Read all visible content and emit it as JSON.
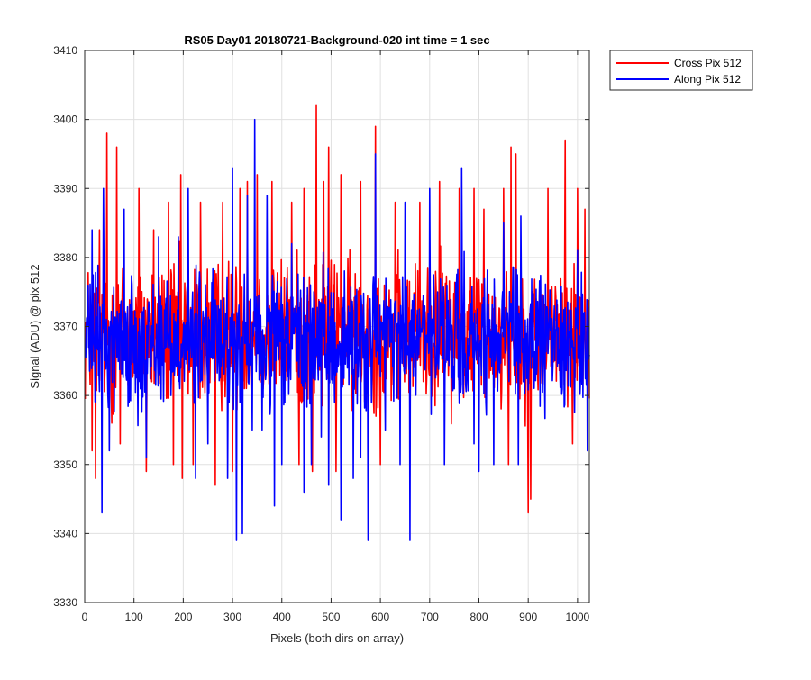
{
  "chart_data": {
    "type": "line",
    "title": "RS05 Day01 20180721-Background-020 int time = 1 sec",
    "xlabel": "Pixels (both dirs on array)",
    "ylabel": "Signal (ADU) @ pix 512",
    "xlim": [
      0,
      1024
    ],
    "ylim": [
      3330,
      3410
    ],
    "x_ticks": [
      0,
      100,
      200,
      300,
      400,
      500,
      600,
      700,
      800,
      900,
      1000
    ],
    "y_ticks": [
      3330,
      3340,
      3350,
      3360,
      3370,
      3380,
      3390,
      3400,
      3410
    ],
    "grid": true,
    "legend": "outside-top-right",
    "series": [
      {
        "name": "Cross Pix 512",
        "color": "#ff0000",
        "x_range": [
          1,
          1024
        ],
        "mean": 3369,
        "typical_range": [
          3354,
          3385
        ],
        "points": [
          [
            15,
            3352
          ],
          [
            22,
            3348
          ],
          [
            30,
            3384
          ],
          [
            45,
            3398
          ],
          [
            55,
            3356
          ],
          [
            65,
            3396
          ],
          [
            72,
            3353
          ],
          [
            110,
            3390
          ],
          [
            125,
            3349
          ],
          [
            140,
            3384
          ],
          [
            170,
            3388
          ],
          [
            180,
            3350
          ],
          [
            195,
            3392
          ],
          [
            198,
            3348
          ],
          [
            220,
            3350
          ],
          [
            235,
            3388
          ],
          [
            265,
            3347
          ],
          [
            280,
            3388
          ],
          [
            300,
            3349
          ],
          [
            315,
            3390
          ],
          [
            330,
            3391
          ],
          [
            350,
            3392
          ],
          [
            380,
            3391
          ],
          [
            420,
            3388
          ],
          [
            435,
            3350
          ],
          [
            445,
            3390
          ],
          [
            462,
            3349
          ],
          [
            470,
            3402
          ],
          [
            485,
            3391
          ],
          [
            495,
            3396
          ],
          [
            510,
            3349
          ],
          [
            520,
            3392
          ],
          [
            560,
            3391
          ],
          [
            590,
            3399
          ],
          [
            600,
            3350
          ],
          [
            630,
            3388
          ],
          [
            660,
            3352
          ],
          [
            680,
            3388
          ],
          [
            720,
            3391
          ],
          [
            760,
            3390
          ],
          [
            790,
            3390
          ],
          [
            810,
            3387
          ],
          [
            850,
            3390
          ],
          [
            860,
            3350
          ],
          [
            865,
            3396
          ],
          [
            875,
            3395
          ],
          [
            900,
            3343
          ],
          [
            905,
            3345
          ],
          [
            940,
            3390
          ],
          [
            975,
            3397
          ],
          [
            990,
            3353
          ],
          [
            1000,
            3390
          ],
          [
            1015,
            3387
          ]
        ]
      },
      {
        "name": "Along Pix 512",
        "color": "#0000ff",
        "x_range": [
          1,
          1024
        ],
        "mean": 3368,
        "typical_range": [
          3355,
          3383
        ],
        "points": [
          [
            15,
            3384
          ],
          [
            35,
            3343
          ],
          [
            38,
            3390
          ],
          [
            50,
            3352
          ],
          [
            80,
            3387
          ],
          [
            90,
            3359
          ],
          [
            125,
            3351
          ],
          [
            150,
            3383
          ],
          [
            175,
            3360
          ],
          [
            190,
            3383
          ],
          [
            210,
            3390
          ],
          [
            225,
            3348
          ],
          [
            250,
            3353
          ],
          [
            290,
            3348
          ],
          [
            300,
            3393
          ],
          [
            308,
            3339
          ],
          [
            315,
            3359
          ],
          [
            320,
            3340
          ],
          [
            330,
            3389
          ],
          [
            340,
            3355
          ],
          [
            345,
            3400
          ],
          [
            360,
            3355
          ],
          [
            370,
            3389
          ],
          [
            385,
            3344
          ],
          [
            400,
            3350
          ],
          [
            420,
            3382
          ],
          [
            445,
            3346
          ],
          [
            460,
            3350
          ],
          [
            480,
            3354
          ],
          [
            495,
            3347
          ],
          [
            520,
            3342
          ],
          [
            545,
            3348
          ],
          [
            560,
            3351
          ],
          [
            575,
            3339
          ],
          [
            590,
            3395
          ],
          [
            610,
            3355
          ],
          [
            640,
            3350
          ],
          [
            650,
            3388
          ],
          [
            660,
            3339
          ],
          [
            700,
            3390
          ],
          [
            730,
            3350
          ],
          [
            765,
            3393
          ],
          [
            790,
            3353
          ],
          [
            800,
            3349
          ],
          [
            830,
            3350
          ],
          [
            850,
            3385
          ],
          [
            880,
            3350
          ],
          [
            885,
            3386
          ],
          [
            890,
            3362
          ],
          [
            1000,
            3381
          ],
          [
            1020,
            3352
          ]
        ]
      }
    ]
  }
}
